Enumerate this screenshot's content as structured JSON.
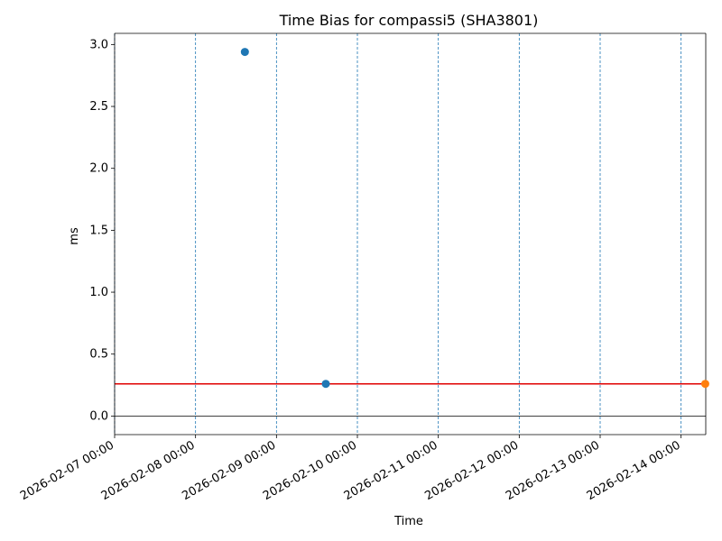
{
  "chart_data": {
    "type": "scatter",
    "title": "Time Bias for compassi5 (SHA3801)",
    "xlabel": "Time",
    "ylabel": "ms",
    "x_tick_labels": [
      "2026-02-07 00:00",
      "2026-02-08 00:00",
      "2026-02-09 00:00",
      "2026-02-10 00:00",
      "2026-02-11 00:00",
      "2026-02-12 00:00",
      "2026-02-13 00:00",
      "2026-02-14 00:00"
    ],
    "y_tick_labels": [
      "0.0",
      "0.5",
      "1.0",
      "1.5",
      "2.0",
      "2.5",
      "3.0"
    ],
    "y_ticks": [
      0.0,
      0.5,
      1.0,
      1.5,
      2.0,
      2.5,
      3.0
    ],
    "xlim": [
      "2026-02-07 00:00",
      "2026-02-14 07:19"
    ],
    "ylim": [
      -0.15,
      3.09
    ],
    "grid": "vertical dashed at each day",
    "series": [
      {
        "color": "#1f77b4",
        "points": [
          {
            "x": "2026-02-08 14:38",
            "y": 2.94
          },
          {
            "x": "2026-02-09 14:38",
            "y": 0.26
          }
        ]
      },
      {
        "color": "#ff7f0e",
        "points": [
          {
            "x": "2026-02-14 07:10",
            "y": 0.26
          }
        ]
      }
    ],
    "reference_lines": [
      {
        "orientation": "horizontal",
        "y": 0.26,
        "color": "#e00000"
      },
      {
        "orientation": "horizontal",
        "y": 0.0,
        "color": "#000000"
      }
    ],
    "colors": {
      "grid": "#1f77b4",
      "axis": "#000000"
    }
  }
}
